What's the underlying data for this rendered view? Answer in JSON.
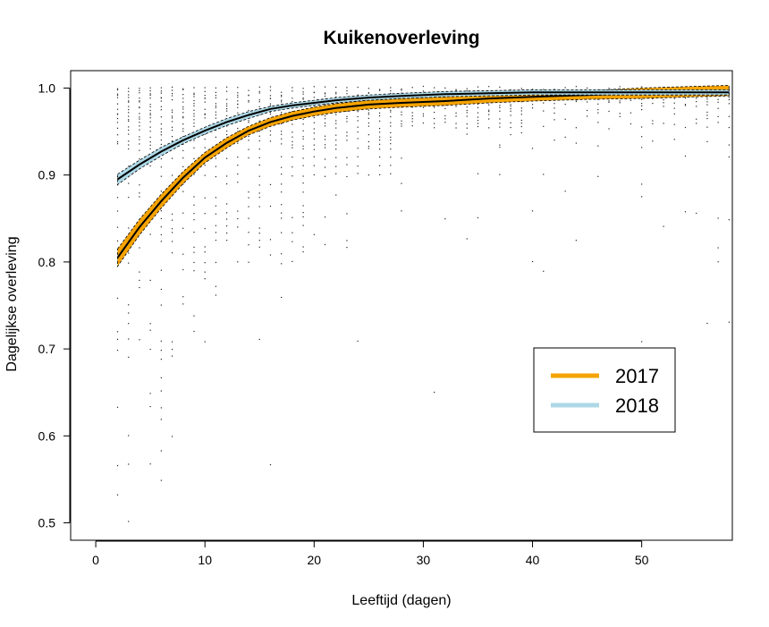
{
  "chart_data": {
    "type": "line",
    "title": "Kuikenoverleving",
    "xlabel": "Leeftijd (dagen)",
    "ylabel": "Dagelijkse overleving",
    "xlim": [
      -2.3,
      58.3
    ],
    "ylim": [
      0.48,
      1.02
    ],
    "x_ticks": [
      0,
      10,
      20,
      30,
      40,
      50
    ],
    "y_ticks": [
      0.5,
      0.6,
      0.7,
      0.8,
      0.9,
      1.0
    ],
    "x_tick_labels": [
      "0",
      "10",
      "20",
      "30",
      "40",
      "50"
    ],
    "y_tick_labels": [
      "0.5",
      "0.6",
      "0.7",
      "0.8",
      "0.9",
      "1.0"
    ],
    "grid": false,
    "legend_position": "center-right",
    "series": [
      {
        "name": "2017",
        "color": "#F5A300",
        "x": [
          2,
          4,
          6,
          8,
          10,
          12,
          14,
          16,
          18,
          20,
          22,
          25,
          28,
          32,
          36,
          40,
          45,
          50,
          55,
          58
        ],
        "y": [
          0.805,
          0.84,
          0.87,
          0.897,
          0.92,
          0.937,
          0.951,
          0.961,
          0.968,
          0.973,
          0.977,
          0.981,
          0.983,
          0.985,
          0.988,
          0.99,
          0.992,
          0.994,
          0.996,
          0.997
        ],
        "band": [
          0.01,
          0.009,
          0.008,
          0.007,
          0.006,
          0.006,
          0.005,
          0.005,
          0.005,
          0.005,
          0.005,
          0.005,
          0.005,
          0.005,
          0.005,
          0.005,
          0.005,
          0.006,
          0.006,
          0.006
        ]
      },
      {
        "name": "2018",
        "color": "#ADD8E6",
        "x": [
          2,
          4,
          6,
          8,
          10,
          12,
          14,
          16,
          18,
          20,
          22,
          25,
          28,
          32,
          36,
          40,
          45,
          50,
          55,
          58
        ],
        "y": [
          0.895,
          0.912,
          0.927,
          0.94,
          0.951,
          0.961,
          0.969,
          0.976,
          0.98,
          0.983,
          0.986,
          0.989,
          0.991,
          0.993,
          0.994,
          0.995,
          0.995,
          0.995,
          0.995,
          0.995
        ],
        "band": [
          0.006,
          0.005,
          0.005,
          0.004,
          0.004,
          0.004,
          0.004,
          0.003,
          0.003,
          0.003,
          0.003,
          0.003,
          0.003,
          0.003,
          0.003,
          0.003,
          0.003,
          0.003,
          0.003,
          0.003
        ]
      }
    ]
  }
}
